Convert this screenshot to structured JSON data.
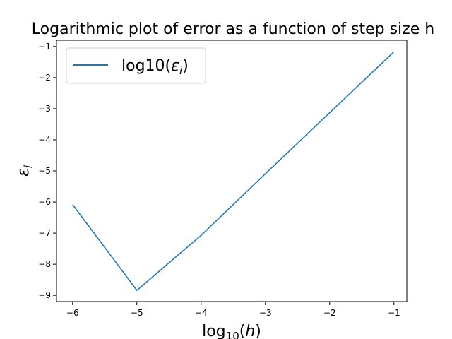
{
  "chart_data": {
    "type": "line",
    "title": "Logarithmic plot of error as a function of step size h",
    "xlabel": "log10(h)",
    "ylabel": "εi",
    "xlim": [
      -6.25,
      -0.8
    ],
    "ylim": [
      -9.2,
      -0.8
    ],
    "xticks": [
      -6,
      -5,
      -4,
      -3,
      -2,
      -1
    ],
    "xtick_labels": [
      "−6",
      "−5",
      "−4",
      "−3",
      "−2",
      "−1"
    ],
    "yticks": [
      -9,
      -8,
      -7,
      -6,
      -5,
      -4,
      -3,
      -2,
      -1
    ],
    "ytick_labels": [
      "−9",
      "−8",
      "−7",
      "−6",
      "−5",
      "−4",
      "−3",
      "−2",
      "−1"
    ],
    "legend_position": "top-left",
    "grid": false,
    "series": [
      {
        "name": "log10(εi)",
        "color": "#1f77b4",
        "x": [
          -6,
          -5,
          -4,
          -3,
          -2,
          -1
        ],
        "y": [
          -6.08,
          -8.84,
          -7.07,
          -5.09,
          -3.13,
          -1.17
        ]
      }
    ]
  }
}
